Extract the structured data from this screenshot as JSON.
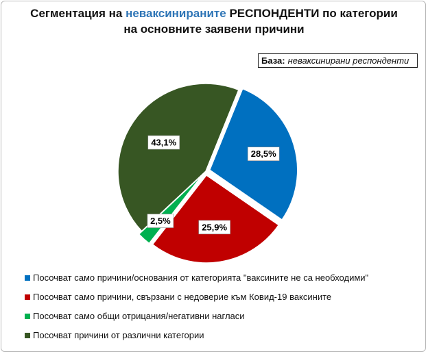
{
  "title": {
    "line1_before": "Сегментация на ",
    "line1_highlight": "неваксинираните",
    "line1_after": " РЕСПОНДЕНТИ по категории",
    "line2": "на основните заявени причини",
    "highlight_color": "#2e75b6"
  },
  "base": {
    "label": "База:",
    "value": "неваксинирани респонденти"
  },
  "chart_data": {
    "type": "pie",
    "title": "Сегментация на неваксинираните РЕСПОНДЕНТИ по категории на основните заявени причини",
    "legend_position": "bottom",
    "series": [
      {
        "name": "Посочват само причини/основания от категорията \"ваксините не са необходими\"",
        "value": 28.5,
        "label": "28,5%",
        "color": "#0070c0"
      },
      {
        "name": "Посочват само причини, свързани с недоверие към Ковид-19 ваксините",
        "value": 25.9,
        "label": "25,9%",
        "color": "#c00000"
      },
      {
        "name": "Посочват само общи отрицания/негативни нагласи",
        "value": 2.5,
        "label": "2,5%",
        "color": "#00b050"
      },
      {
        "name": "Посочват причини от различни категории",
        "value": 43.1,
        "label": "43,1%",
        "color": "#375623"
      }
    ]
  }
}
